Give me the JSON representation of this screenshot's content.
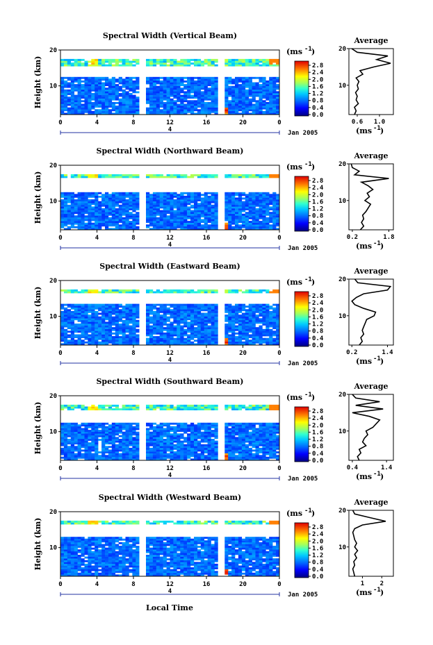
{
  "common": {
    "colorbar_unit": "(ms",
    "colorbar_unit_exp": "-1",
    "colorbar_ticks": [
      "2.8",
      "2.4",
      "2.0",
      "1.6",
      "1.2",
      "0.8",
      "0.4",
      "0.0"
    ],
    "x_ticks": [
      "0",
      "4",
      "8",
      "12",
      "16",
      "20",
      "0"
    ],
    "date_label": "Jan 2005",
    "day_label": "4",
    "y_label": "Height (km)",
    "y_ticks": [
      "20",
      "10"
    ],
    "avg_title": "Average",
    "avg_unit": "(ms",
    "avg_unit_exp": "-1",
    "x_label": "Local Time"
  },
  "chart_data": [
    {
      "type": "heatmap",
      "title": "Spectral Width (Vertical Beam)",
      "ylabel": "Height (km)",
      "xlim": [
        0,
        24
      ],
      "ylim": [
        2,
        20
      ],
      "clim": [
        0.0,
        3.0
      ],
      "avg": {
        "ticks": [
          "0.6",
          "1.0"
        ],
        "xlim": [
          0.45,
          1.25
        ],
        "heights": [
          2,
          3,
          4,
          5,
          6,
          7,
          8,
          9,
          10,
          11,
          12,
          13,
          14,
          15,
          16,
          17,
          18,
          19,
          20
        ],
        "values": [
          0.55,
          0.58,
          0.55,
          0.62,
          0.58,
          0.6,
          0.57,
          0.62,
          0.6,
          0.63,
          0.58,
          0.7,
          0.65,
          0.9,
          1.2,
          0.95,
          1.15,
          0.6,
          0.5
        ]
      }
    },
    {
      "type": "heatmap",
      "title": "Spectral Width (Northward Beam)",
      "ylabel": "Height (km)",
      "xlim": [
        0,
        24
      ],
      "ylim": [
        2,
        20
      ],
      "clim": [
        0.0,
        3.0
      ],
      "avg": {
        "ticks": [
          "0.2",
          "1.8"
        ],
        "xlim": [
          0.05,
          2.0
        ],
        "heights": [
          2,
          3,
          4,
          5,
          6,
          7,
          8,
          9,
          10,
          11,
          12,
          13,
          14,
          15,
          16,
          17,
          18,
          19,
          20
        ],
        "values": [
          0.55,
          0.7,
          0.6,
          0.7,
          0.65,
          0.8,
          0.9,
          1.0,
          0.75,
          0.95,
          0.85,
          1.1,
          0.9,
          0.6,
          1.8,
          0.3,
          0.5,
          0.2,
          0.15
        ]
      }
    },
    {
      "type": "heatmap",
      "title": "Spectral Width (Eastward Beam)",
      "ylabel": "Height (km)",
      "xlim": [
        0,
        24
      ],
      "ylim": [
        2,
        20
      ],
      "clim": [
        0.0,
        3.0
      ],
      "avg": {
        "ticks": [
          "0.2",
          "1.4"
        ],
        "xlim": [
          0.1,
          1.6
        ],
        "heights": [
          2,
          3,
          4,
          5,
          6,
          7,
          8,
          9,
          10,
          11,
          12,
          13,
          14,
          15,
          16,
          17,
          18,
          19,
          20
        ],
        "values": [
          0.45,
          0.55,
          0.5,
          0.6,
          0.55,
          0.6,
          0.65,
          0.7,
          0.95,
          1.0,
          0.6,
          0.3,
          0.2,
          0.35,
          0.6,
          1.4,
          1.5,
          0.4,
          0.3
        ]
      }
    },
    {
      "type": "heatmap",
      "title": "Spectral Width (Southward Beam)",
      "ylabel": "Height (km)",
      "xlim": [
        0,
        24
      ],
      "ylim": [
        2,
        20
      ],
      "clim": [
        0.0,
        3.0
      ],
      "avg": {
        "ticks": [
          "0.4",
          "1.4"
        ],
        "xlim": [
          0.3,
          1.6
        ],
        "heights": [
          2,
          3,
          4,
          5,
          6,
          7,
          8,
          9,
          10,
          11,
          12,
          13,
          14,
          15,
          16,
          17,
          18,
          19,
          20
        ],
        "values": [
          0.6,
          0.55,
          0.65,
          0.6,
          0.8,
          0.7,
          0.75,
          0.85,
          0.8,
          1.0,
          1.1,
          1.2,
          0.9,
          0.4,
          1.3,
          0.5,
          1.2,
          0.5,
          0.4
        ]
      }
    },
    {
      "type": "heatmap",
      "title": "Spectral Width (Westward Beam)",
      "ylabel": "Height (km)",
      "xlabel": "Local Time",
      "xlim": [
        0,
        24
      ],
      "ylim": [
        2,
        20
      ],
      "clim": [
        0.0,
        3.0
      ],
      "avg": {
        "ticks": [
          "1",
          "2"
        ],
        "xlim": [
          0.3,
          2.6
        ],
        "heights": [
          2,
          3,
          4,
          5,
          6,
          7,
          8,
          9,
          10,
          11,
          12,
          13,
          14,
          15,
          16,
          17,
          18,
          19,
          20
        ],
        "values": [
          0.6,
          0.55,
          0.5,
          0.6,
          0.55,
          0.7,
          0.6,
          0.75,
          0.6,
          0.7,
          0.6,
          0.55,
          0.5,
          0.6,
          1.0,
          2.2,
          1.4,
          0.6,
          0.5
        ]
      }
    }
  ]
}
